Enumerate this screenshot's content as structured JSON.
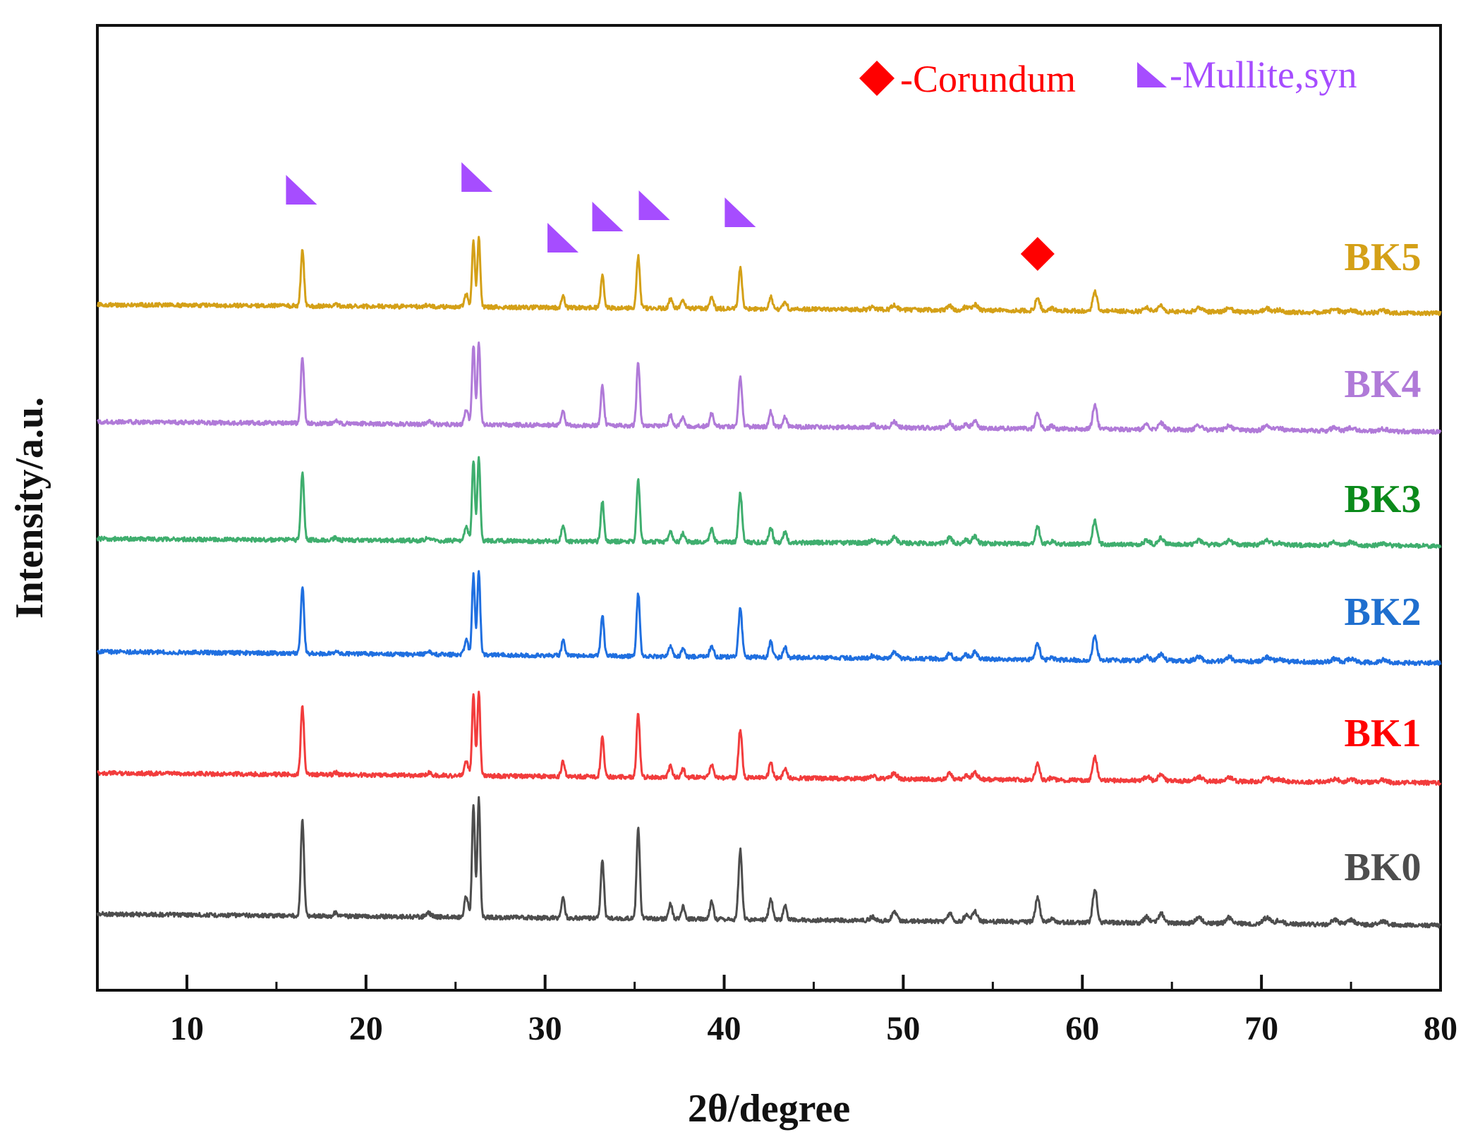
{
  "chart_data": {
    "type": "line",
    "title": "",
    "xlabel": "2θ/degree",
    "ylabel": "Intensity/a.u.",
    "xlim": [
      5,
      80
    ],
    "x_ticks": [
      10,
      20,
      30,
      40,
      50,
      60,
      70,
      80
    ],
    "x_tick_labels": [
      "10",
      "20",
      "30",
      "40",
      "50",
      "60",
      "70",
      "80"
    ],
    "y_ticks": [],
    "grid": false,
    "legend": {
      "placement": "top-right",
      "entries": [
        {
          "marker": "diamond",
          "label": "-Corundum",
          "color": "#ff0000"
        },
        {
          "marker": "triangle",
          "label": "-Mullite,syn",
          "color": "#a64dff"
        }
      ]
    },
    "peak_markers": [
      {
        "phase": "Mullite,syn",
        "marker": "triangle",
        "x": 16.4
      },
      {
        "phase": "Mullite,syn",
        "marker": "triangle",
        "x": 26.2
      },
      {
        "phase": "Mullite,syn",
        "marker": "triangle",
        "x": 31.0
      },
      {
        "phase": "Mullite,syn",
        "marker": "triangle",
        "x": 33.5
      },
      {
        "phase": "Mullite,syn",
        "marker": "triangle",
        "x": 36.1
      },
      {
        "phase": "Mullite,syn",
        "marker": "triangle",
        "x": 40.9
      },
      {
        "phase": "Corundum",
        "marker": "diamond",
        "x": 57.5
      }
    ],
    "peaks": [
      {
        "x": 16.45,
        "rel": 0.8,
        "w": 0.09
      },
      {
        "x": 18.3,
        "rel": 0.03,
        "w": 0.1
      },
      {
        "x": 23.5,
        "rel": 0.03,
        "w": 0.15
      },
      {
        "x": 25.6,
        "rel": 0.18,
        "w": 0.1
      },
      {
        "x": 26.0,
        "rel": 0.95,
        "w": 0.08
      },
      {
        "x": 26.3,
        "rel": 1.0,
        "w": 0.08
      },
      {
        "x": 31.0,
        "rel": 0.18,
        "w": 0.09
      },
      {
        "x": 33.2,
        "rel": 0.48,
        "w": 0.09
      },
      {
        "x": 35.2,
        "rel": 0.75,
        "w": 0.09
      },
      {
        "x": 37.0,
        "rel": 0.13,
        "w": 0.1
      },
      {
        "x": 37.7,
        "rel": 0.1,
        "w": 0.1
      },
      {
        "x": 39.3,
        "rel": 0.15,
        "w": 0.1
      },
      {
        "x": 40.9,
        "rel": 0.58,
        "w": 0.1
      },
      {
        "x": 42.6,
        "rel": 0.18,
        "w": 0.1
      },
      {
        "x": 43.4,
        "rel": 0.12,
        "w": 0.1
      },
      {
        "x": 48.3,
        "rel": 0.03,
        "w": 0.15
      },
      {
        "x": 49.5,
        "rel": 0.07,
        "w": 0.15
      },
      {
        "x": 52.6,
        "rel": 0.07,
        "w": 0.12
      },
      {
        "x": 53.5,
        "rel": 0.05,
        "w": 0.12
      },
      {
        "x": 54.0,
        "rel": 0.08,
        "w": 0.15
      },
      {
        "x": 57.5,
        "rel": 0.2,
        "w": 0.12
      },
      {
        "x": 58.3,
        "rel": 0.03,
        "w": 0.12
      },
      {
        "x": 60.7,
        "rel": 0.28,
        "w": 0.12
      },
      {
        "x": 63.6,
        "rel": 0.05,
        "w": 0.15
      },
      {
        "x": 64.4,
        "rel": 0.08,
        "w": 0.15
      },
      {
        "x": 66.5,
        "rel": 0.05,
        "w": 0.18
      },
      {
        "x": 68.2,
        "rel": 0.05,
        "w": 0.18
      },
      {
        "x": 70.3,
        "rel": 0.05,
        "w": 0.2
      },
      {
        "x": 71.0,
        "rel": 0.03,
        "w": 0.2
      },
      {
        "x": 74.1,
        "rel": 0.04,
        "w": 0.2
      },
      {
        "x": 75.0,
        "rel": 0.04,
        "w": 0.2
      },
      {
        "x": 76.8,
        "rel": 0.03,
        "w": 0.2
      }
    ],
    "series": [
      {
        "name": "BK0",
        "color": "#4d4d4d",
        "label_color": "#4d4d4d",
        "peak_scale": 1.0
      },
      {
        "name": "BK1",
        "color": "#f23c3c",
        "label_color": "#ff0000",
        "peak_scale": 0.85
      },
      {
        "name": "BK2",
        "color": "#1f6fe0",
        "label_color": "#1f6fcf",
        "peak_scale": 0.85
      },
      {
        "name": "BK3",
        "color": "#3fae6e",
        "label_color": "#0a8a1a",
        "peak_scale": 0.85
      },
      {
        "name": "BK4",
        "color": "#b07ad8",
        "label_color": "#b07ad8",
        "peak_scale": 0.85
      },
      {
        "name": "BK5",
        "color": "#d4a017",
        "label_color": "#d4a017",
        "peak_scale": 0.7
      }
    ]
  }
}
